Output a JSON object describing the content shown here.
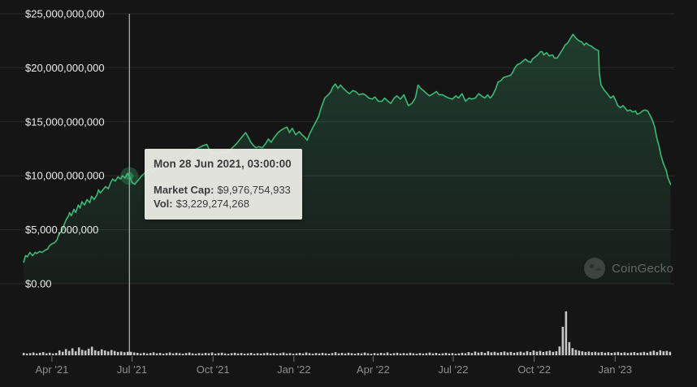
{
  "colors": {
    "background": "#151515",
    "line_green": "#3eb876",
    "area_green": "rgba(62,184,118,0.22)",
    "gridline": "#2b2b2b",
    "y_label": "#ececec",
    "x_label": "#8f8f8f",
    "crosshair": "#d6d6d6",
    "volume_bar": "#dedede",
    "tooltip_bg": "#e9eae4",
    "tooltip_text": "#3c3c3c"
  },
  "tooltip": {
    "title": "Mon 28 Jun 2021, 03:00:00",
    "rows": [
      {
        "label": "Market Cap:",
        "value": "$9,976,754,933"
      },
      {
        "label": "Vol:",
        "value": "$3,229,274,268"
      }
    ]
  },
  "watermark": {
    "text": "CoinGecko"
  },
  "chart": {
    "y_axis": {
      "ticks": [
        {
          "label": "$25,000,000,000",
          "value_billions": 25
        },
        {
          "label": "$20,000,000,000",
          "value_billions": 20
        },
        {
          "label": "$15,000,000,000",
          "value_billions": 15
        },
        {
          "label": "$10,000,000,000",
          "value_billions": 10
        },
        {
          "label": "$5,000,000,000",
          "value_billions": 5
        },
        {
          "label": "$0.00",
          "value_billions": 0
        }
      ]
    },
    "x_axis": {
      "ticks": [
        {
          "label": "Apr '21",
          "day": 59,
          "date": "2021-04-01"
        },
        {
          "label": "Jul '21",
          "day": 150,
          "date": "2021-07-01"
        },
        {
          "label": "Oct '21",
          "day": 242,
          "date": "2021-10-01"
        },
        {
          "label": "Jan '22",
          "day": 334,
          "date": "2022-01-01"
        },
        {
          "label": "Apr '22",
          "day": 424,
          "date": "2022-04-01"
        },
        {
          "label": "Jul '22",
          "day": 515,
          "date": "2022-07-01"
        },
        {
          "label": "Oct '22",
          "day": 607,
          "date": "2022-10-01"
        },
        {
          "label": "Jan '23",
          "day": 699,
          "date": "2023-01-01"
        }
      ]
    }
  },
  "chart_data": {
    "type": "area",
    "title": "Market cap with volume (CoinGecko style)",
    "x_epoch": "2021-02-01",
    "x_unit": "days_since_epoch",
    "x_span_days": 792,
    "y_unit": "USD billions",
    "ylim": [
      0,
      25
    ],
    "grid": true,
    "legend": "none",
    "highlight": {
      "day": 147,
      "value_billions": 9.976754933,
      "date_label": "Mon 28 Jun 2021, 03:00:00",
      "vol_billions": 3.229274268
    },
    "series": [
      {
        "name": "Market Cap",
        "color": "#3eb876",
        "points": [
          [
            27,
            2.0
          ],
          [
            29,
            2.6
          ],
          [
            31,
            2.5
          ],
          [
            34,
            2.9
          ],
          [
            37,
            2.6
          ],
          [
            40,
            2.9
          ],
          [
            42,
            2.8
          ],
          [
            45,
            3.0
          ],
          [
            48,
            2.9
          ],
          [
            51,
            3.1
          ],
          [
            54,
            3.2
          ],
          [
            56,
            3.5
          ],
          [
            59,
            3.7
          ],
          [
            62,
            3.8
          ],
          [
            65,
            4.1
          ],
          [
            66,
            4.4
          ],
          [
            68,
            4.7
          ],
          [
            71,
            5.0
          ],
          [
            73,
            5.5
          ],
          [
            75,
            5.9
          ],
          [
            78,
            6.3
          ],
          [
            79,
            6.6
          ],
          [
            81,
            6.3
          ],
          [
            84,
            6.9
          ],
          [
            86,
            6.6
          ],
          [
            89,
            7.3
          ],
          [
            91,
            7.0
          ],
          [
            93,
            7.6
          ],
          [
            96,
            7.3
          ],
          [
            99,
            7.8
          ],
          [
            102,
            7.5
          ],
          [
            104,
            8.1
          ],
          [
            107,
            7.8
          ],
          [
            110,
            8.2
          ],
          [
            112,
            8.7
          ],
          [
            114,
            8.4
          ],
          [
            117,
            8.7
          ],
          [
            120,
            9.0
          ],
          [
            123,
            8.8
          ],
          [
            126,
            9.4
          ],
          [
            128,
            9.7
          ],
          [
            131,
            9.5
          ],
          [
            134,
            9.9
          ],
          [
            137,
            9.7
          ],
          [
            139,
            10.0
          ],
          [
            142,
            9.8
          ],
          [
            145,
            10.2
          ],
          [
            147,
            9.98
          ],
          [
            150,
            9.4
          ],
          [
            153,
            9.2
          ],
          [
            157,
            9.6
          ],
          [
            161,
            10.0
          ],
          [
            165,
            10.3
          ],
          [
            170,
            10.6
          ],
          [
            174,
            10.4
          ],
          [
            179,
            10.8
          ],
          [
            184,
            10.6
          ],
          [
            188,
            11.1
          ],
          [
            193,
            10.9
          ],
          [
            198,
            11.3
          ],
          [
            202,
            11.2
          ],
          [
            207,
            11.5
          ],
          [
            211,
            11.7
          ],
          [
            216,
            12.0
          ],
          [
            221,
            12.4
          ],
          [
            226,
            12.6
          ],
          [
            231,
            12.8
          ],
          [
            235,
            12.9
          ],
          [
            238,
            12.4
          ],
          [
            241,
            12.1
          ],
          [
            244,
            12.2
          ],
          [
            248,
            12.0
          ],
          [
            252,
            12.2
          ],
          [
            256,
            12.1
          ],
          [
            260,
            12.3
          ],
          [
            264,
            12.6
          ],
          [
            268,
            12.9
          ],
          [
            272,
            13.3
          ],
          [
            276,
            13.7
          ],
          [
            279,
            14.0
          ],
          [
            282,
            13.6
          ],
          [
            285,
            13.1
          ],
          [
            288,
            12.8
          ],
          [
            291,
            12.6
          ],
          [
            294,
            12.7
          ],
          [
            298,
            12.6
          ],
          [
            302,
            13.0
          ],
          [
            305,
            13.4
          ],
          [
            308,
            13.1
          ],
          [
            312,
            13.6
          ],
          [
            316,
            14.0
          ],
          [
            319,
            14.2
          ],
          [
            323,
            14.4
          ],
          [
            326,
            14.5
          ],
          [
            329,
            14.0
          ],
          [
            332,
            14.4
          ],
          [
            336,
            13.8
          ],
          [
            340,
            14.1
          ],
          [
            343,
            13.8
          ],
          [
            346,
            13.6
          ],
          [
            349,
            13.3
          ],
          [
            352,
            13.9
          ],
          [
            355,
            14.4
          ],
          [
            359,
            15.0
          ],
          [
            362,
            15.5
          ],
          [
            365,
            16.3
          ],
          [
            369,
            17.2
          ],
          [
            373,
            17.5
          ],
          [
            376,
            17.8
          ],
          [
            378,
            18.2
          ],
          [
            381,
            18.5
          ],
          [
            384,
            18.1
          ],
          [
            387,
            18.4
          ],
          [
            390,
            18.1
          ],
          [
            394,
            17.8
          ],
          [
            397,
            17.6
          ],
          [
            401,
            17.9
          ],
          [
            404,
            17.8
          ],
          [
            408,
            17.5
          ],
          [
            412,
            17.6
          ],
          [
            415,
            17.5
          ],
          [
            419,
            17.2
          ],
          [
            423,
            17.1
          ],
          [
            426,
            17.3
          ],
          [
            430,
            16.9
          ],
          [
            434,
            16.9
          ],
          [
            437,
            17.2
          ],
          [
            441,
            16.9
          ],
          [
            444,
            16.7
          ],
          [
            448,
            17.2
          ],
          [
            451,
            17.4
          ],
          [
            455,
            17.1
          ],
          [
            459,
            17.5
          ],
          [
            461,
            17.1
          ],
          [
            464,
            16.5
          ],
          [
            468,
            16.7
          ],
          [
            472,
            17.2
          ],
          [
            475,
            18.4
          ],
          [
            478,
            18.1
          ],
          [
            481,
            17.9
          ],
          [
            485,
            17.6
          ],
          [
            488,
            17.4
          ],
          [
            492,
            17.6
          ],
          [
            496,
            17.8
          ],
          [
            499,
            17.5
          ],
          [
            503,
            17.5
          ],
          [
            507,
            17.3
          ],
          [
            510,
            17.2
          ],
          [
            514,
            17.1
          ],
          [
            518,
            17.4
          ],
          [
            521,
            17.2
          ],
          [
            525,
            17.6
          ],
          [
            529,
            16.9
          ],
          [
            533,
            17.2
          ],
          [
            536,
            17.1
          ],
          [
            540,
            17.2
          ],
          [
            544,
            17.6
          ],
          [
            547,
            17.4
          ],
          [
            551,
            17.2
          ],
          [
            554,
            17.5
          ],
          [
            557,
            17.2
          ],
          [
            560,
            17.5
          ],
          [
            563,
            18.0
          ],
          [
            566,
            18.7
          ],
          [
            569,
            18.8
          ],
          [
            572,
            19.1
          ],
          [
            576,
            19.2
          ],
          [
            580,
            19.3
          ],
          [
            582,
            19.5
          ],
          [
            585,
            20.0
          ],
          [
            588,
            20.3
          ],
          [
            591,
            20.4
          ],
          [
            594,
            20.6
          ],
          [
            597,
            20.8
          ],
          [
            600,
            20.6
          ],
          [
            603,
            20.5
          ],
          [
            605,
            20.8
          ],
          [
            608,
            21.0
          ],
          [
            611,
            21.2
          ],
          [
            614,
            21.5
          ],
          [
            616,
            21.5
          ],
          [
            618,
            21.2
          ],
          [
            621,
            21.4
          ],
          [
            624,
            21.1
          ],
          [
            628,
            21.2
          ],
          [
            630,
            20.9
          ],
          [
            633,
            20.9
          ],
          [
            637,
            21.4
          ],
          [
            640,
            21.8
          ],
          [
            642,
            22.1
          ],
          [
            645,
            22.3
          ],
          [
            648,
            22.7
          ],
          [
            651,
            23.1
          ],
          [
            653,
            22.9
          ],
          [
            655,
            22.7
          ],
          [
            658,
            22.5
          ],
          [
            661,
            22.4
          ],
          [
            664,
            22.1
          ],
          [
            666,
            22.3
          ],
          [
            669,
            22.1
          ],
          [
            672,
            22.0
          ],
          [
            675,
            21.8
          ],
          [
            677,
            21.7
          ],
          [
            680,
            21.6
          ],
          [
            681,
            19.5
          ],
          [
            683,
            18.4
          ],
          [
            686,
            18.0
          ],
          [
            688,
            17.8
          ],
          [
            691,
            17.5
          ],
          [
            694,
            17.2
          ],
          [
            697,
            17.4
          ],
          [
            700,
            16.9
          ],
          [
            702,
            16.5
          ],
          [
            705,
            16.3
          ],
          [
            708,
            16.5
          ],
          [
            711,
            16.2
          ],
          [
            713,
            16.0
          ],
          [
            716,
            16.1
          ],
          [
            719,
            15.9
          ],
          [
            722,
            16.0
          ],
          [
            724,
            15.7
          ],
          [
            727,
            15.8
          ],
          [
            730,
            16.0
          ],
          [
            733,
            16.1
          ],
          [
            736,
            16.0
          ],
          [
            738,
            15.7
          ],
          [
            741,
            15.2
          ],
          [
            744,
            14.5
          ],
          [
            746,
            13.6
          ],
          [
            749,
            12.7
          ],
          [
            751,
            11.9
          ],
          [
            754,
            11.1
          ],
          [
            757,
            10.5
          ],
          [
            759,
            9.8
          ],
          [
            762,
            9.2
          ]
        ]
      }
    ],
    "volume": {
      "name": "Vol",
      "color": "#dedede",
      "start_day": 27,
      "interval_days": 3.69,
      "values_billions": [
        2.2,
        1.6,
        2.0,
        2.6,
        1.7,
        2.3,
        2.9,
        1.8,
        2.4,
        1.6,
        2.1,
        4.4,
        3.2,
        5.6,
        4.0,
        6.4,
        3.6,
        7.2,
        5.0,
        4.2,
        6.0,
        7.8,
        4.6,
        3.8,
        5.4,
        4.4,
        3.5,
        4.8,
        3.9,
        3.0,
        3.4,
        2.8,
        3.2,
        3.2,
        2.6,
        2.2,
        1.7,
        2.4,
        1.6,
        2.1,
        2.7,
        1.8,
        2.2,
        1.5,
        2.0,
        2.6,
        1.7,
        2.3,
        1.9,
        1.5,
        2.1,
        2.5,
        1.8,
        1.4,
        2.0,
        1.6,
        2.2,
        1.8,
        2.6,
        1.5,
        2.0,
        2.4,
        1.7,
        1.3,
        1.9,
        2.3,
        1.6,
        2.1,
        1.5,
        1.8,
        2.2,
        1.4,
        1.9,
        1.6,
        2.0,
        2.4,
        1.7,
        2.1,
        1.5,
        1.9,
        2.5,
        1.6,
        2.0,
        1.4,
        1.8,
        2.2,
        1.6,
        2.6,
        1.9,
        1.5,
        2.1,
        1.7,
        2.3,
        1.8,
        1.4,
        2.0,
        2.8,
        1.7,
        2.2,
        1.6,
        2.4,
        1.9,
        1.5,
        2.1,
        1.7,
        2.5,
        1.8,
        1.4,
        2.0,
        1.6,
        2.2,
        1.8,
        2.6,
        1.5,
        1.9,
        2.3,
        1.6,
        2.0,
        1.7,
        2.4,
        1.8,
        1.4,
        2.1,
        1.6,
        1.9,
        2.5,
        1.7,
        2.2,
        1.5,
        1.8,
        2.3,
        1.6,
        2.0,
        1.4,
        1.7,
        2.4,
        1.8,
        2.9,
        2.1,
        3.4,
        2.5,
        3.0,
        2.2,
        3.6,
        2.7,
        3.2,
        2.4,
        2.9,
        3.5,
        2.6,
        3.1,
        2.3,
        2.8,
        3.3,
        2.5,
        3.8,
        2.9,
        4.4,
        3.3,
        4.0,
        3.0,
        3.6,
        4.2,
        3.1,
        3.7,
        8.0,
        26.0,
        40.0,
        12.0,
        6.5,
        5.0,
        4.2,
        3.6,
        3.0,
        3.4,
        2.8,
        3.2,
        2.6,
        3.0,
        2.4,
        2.8,
        2.2,
        2.6,
        3.0,
        2.3,
        2.7,
        2.1,
        2.5,
        2.9,
        2.2,
        2.6,
        3.1,
        2.4,
        3.4,
        4.2,
        3.0,
        4.6,
        3.6,
        4.0,
        3.2
      ]
    }
  }
}
